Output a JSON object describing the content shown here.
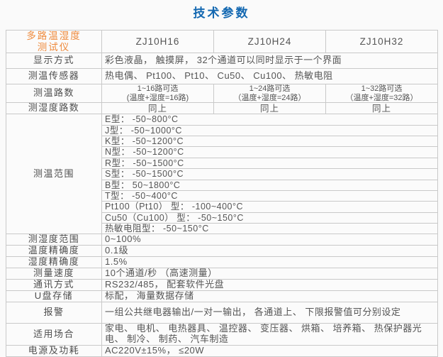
{
  "title": "技术参数",
  "colors": {
    "title_blue": "#1368b1",
    "header_orange": "#ee8a3c",
    "border_gray": "#c9c9c9",
    "text_gray": "#555555"
  },
  "table": {
    "product": {
      "line1": "多路温湿度",
      "line2": "测试仪"
    },
    "models": [
      "ZJ10H16",
      "ZJ10H24",
      "ZJ10H32"
    ],
    "display_row": {
      "label": "显示方式",
      "value": "彩色液晶， 触摸屏， 32个通道可以同时显示于一个界面"
    },
    "sensor_row": {
      "label": "测温传感器",
      "value": "热电偶、 Pt100、 Pt10、 Cu50、 Cu100、 热敏电阻"
    },
    "temp_channels_row": {
      "label": "测温路数",
      "values": [
        {
          "line1": "1~16路可选",
          "line2": "(温度+湿度=16路)"
        },
        {
          "line1": "1~24路可选",
          "line2": "（温度+湿度=24路）"
        },
        {
          "line1": "1~32路可选",
          "line2": "（温度+湿度=32路）"
        }
      ]
    },
    "humidity_channels_row": {
      "label": "测湿度路数",
      "values": [
        "同上",
        "同上",
        "同上"
      ]
    },
    "temp_range_row": {
      "label": "测温范围",
      "items": [
        "E型： -50~800°C",
        "J型： -50~1000°C",
        "K型： -50~1200°C",
        "N型： -50~1200°C",
        "R型： -50~1500°C",
        "S型： -50~1500°C",
        "B型：  50~1800°C",
        "T型： -50~400°C",
        "Pt100（Pt10） 型： -100~400°C",
        "Cu50（Cu100） 型： -50~150°C",
        "热敏电阻型： -50~150°C"
      ]
    },
    "spec_rows": [
      {
        "label": "测湿度范围",
        "value": "0~100%"
      },
      {
        "label": "温度精确度",
        "value": "0.1级"
      },
      {
        "label": "湿度精确度",
        "value": "1.5%"
      },
      {
        "label": "测量速度",
        "value": "10个通道/秒 （高速测量）"
      },
      {
        "label": "通讯方式",
        "value": "RS232/485， 配套软件光盘"
      },
      {
        "label": "U盘存储",
        "value": "标配， 海量数据存储"
      },
      {
        "label": "报警",
        "value": "一组公共继电器输出/一对一输出， 各通道上、 下限报警值可分别设定"
      },
      {
        "label": "适用场合",
        "value": "家电、 电机、 电热器具、 温控器、 变压器、 烘箱、 培养箱、 热保护器光电、 制冷、 制药、 汽车制造"
      },
      {
        "label": "电源及功耗",
        "value": "AC220V±15%， ≤20W"
      }
    ]
  }
}
